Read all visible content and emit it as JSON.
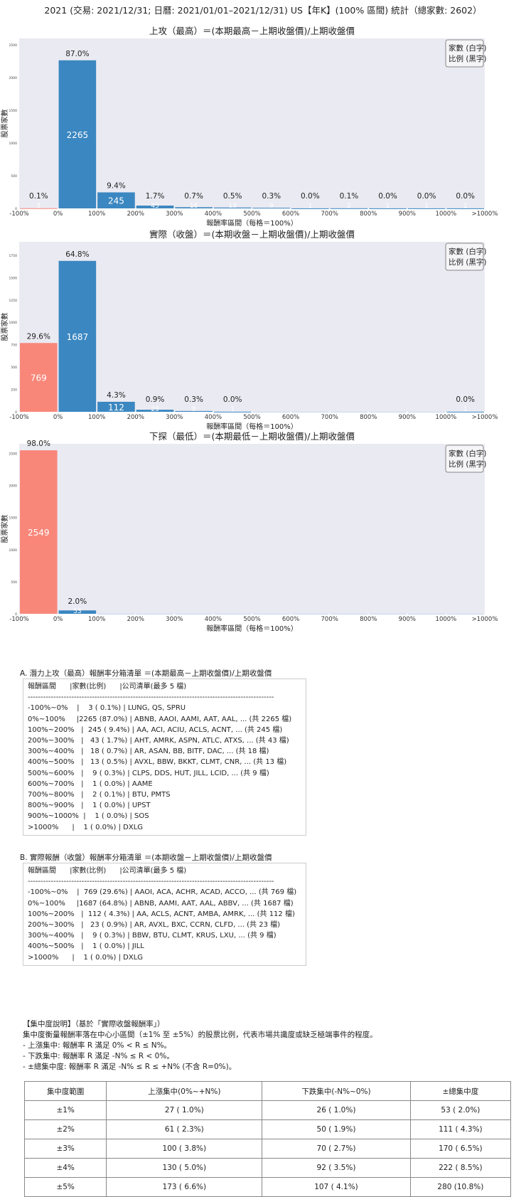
{
  "title": "2021 (交易: 2021/12/31; 日曆: 2021/01/01–2021/12/31) US【年K】(100% 區間) 統計（總家數: 2602）",
  "colors": {
    "negative": "#f8877a",
    "positive": "#3b87c1",
    "plot_bg": "#eaeaf2"
  },
  "chart_data": [
    {
      "type": "bar",
      "title": "上攻（最高）＝(本期最高－上期收盤價)/上期收盤價",
      "xlabel": "報酬率區間（每格＝100%）",
      "ylabel": "股票家數",
      "legend": "家數 (白字)\n比例 (黑字)",
      "legend_lines": [
        "家數 (白字)",
        "比例 (黑字)"
      ],
      "legend_position": "top-right",
      "x_ticks": [
        "-100%",
        "0%",
        "100%",
        "200%",
        "300%",
        "400%",
        "500%",
        "600%",
        "700%",
        "800%",
        "900%",
        "1000%",
        ">1000%"
      ],
      "categories": [
        "-100%~0%",
        "0%~100%",
        "100%~200%",
        "200%~300%",
        "300%~400%",
        "400%~500%",
        "500%~600%",
        "600%~700%",
        "700%~800%",
        "800%~900%",
        "900%~1000%",
        ">1000%"
      ],
      "values": [
        3,
        2265,
        245,
        43,
        18,
        13,
        9,
        1,
        2,
        1,
        1,
        1
      ],
      "pct": [
        "0.1%",
        "87.0%",
        "9.4%",
        "1.7%",
        "0.7%",
        "0.5%",
        "0.3%",
        "0.0%",
        "0.1%",
        "0.0%",
        "0.0%",
        "0.0%"
      ],
      "y_ticks": [
        0,
        500,
        1000,
        1500,
        2000,
        2500
      ],
      "ylim": [
        0,
        2600
      ]
    },
    {
      "type": "bar",
      "title": "實際（收盤）＝(本期收盤－上期收盤價)/上期收盤價",
      "xlabel": "報酬率區間（每格＝100%）",
      "ylabel": "股票家數",
      "legend_lines": [
        "家數 (白字)",
        "比例 (黑字)"
      ],
      "legend_position": "top-right",
      "x_ticks": [
        "-100%",
        "0%",
        "100%",
        "200%",
        "300%",
        "400%",
        "500%",
        "600%",
        "700%",
        "800%",
        "900%",
        "1000%",
        ">1000%"
      ],
      "categories": [
        "-100%~0%",
        "0%~100%",
        "100%~200%",
        "200%~300%",
        "300%~400%",
        "400%~500%",
        "500%~600%",
        "600%~700%",
        "700%~800%",
        "800%~900%",
        "900%~1000%",
        ">1000%"
      ],
      "values": [
        769,
        1687,
        112,
        23,
        9,
        1,
        0,
        0,
        0,
        0,
        0,
        1
      ],
      "pct": [
        "29.6%",
        "64.8%",
        "4.3%",
        "0.9%",
        "0.3%",
        "0.0%",
        "",
        "",
        "",
        "",
        "",
        "0.0%"
      ],
      "y_ticks": [
        0,
        250,
        500,
        750,
        1000,
        1250,
        1500,
        1750
      ],
      "ylim": [
        0,
        1900
      ]
    },
    {
      "type": "bar",
      "title": "下探（最低）＝(本期最低－上期收盤價)/上期收盤價",
      "xlabel": "報酬率區間（每格＝100%）",
      "ylabel": "股票家數",
      "legend_lines": [
        "家數 (白字)",
        "比例 (黑字)"
      ],
      "legend_position": "top-right",
      "x_ticks": [
        "-100%",
        "0%",
        "100%",
        "200%",
        "300%",
        "400%",
        "500%",
        "600%",
        "700%",
        "800%",
        "900%",
        "1000%",
        ">1000%"
      ],
      "categories": [
        "-100%~0%",
        "0%~100%",
        "100%~200%",
        "200%~300%",
        "300%~400%",
        "400%~500%",
        "500%~600%",
        "600%~700%",
        "700%~800%",
        "800%~900%",
        "900%~1000%",
        ">1000%"
      ],
      "values": [
        2549,
        53,
        0,
        0,
        0,
        0,
        0,
        0,
        0,
        0,
        0,
        0
      ],
      "pct": [
        "98.0%",
        "2.0%",
        "",
        "",
        "",
        "",
        "",
        "",
        "",
        "",
        "",
        ""
      ],
      "y_ticks": [
        0,
        500,
        1000,
        1500,
        2000,
        2500
      ],
      "ylim": [
        0,
        2650
      ]
    }
  ],
  "list_a": {
    "caption": "A. 潛力上攻（最高）報酬率分箱清單 ＝(本期最高－上期收盤價)/上期收盤價",
    "header": "報酬區間      |家數(比例)      |公司清單(最多 5 檔)",
    "divider": "------------------------------------------------------------------------------------------------",
    "rows": [
      "-100%~0%    |    3 ( 0.1%) | LUNG, QS, SPRU",
      "0%~100%     |2265 (87.0%) | ABNB, AAOI, AAMI, AAT, AAL, ... (共 2265 檔)",
      "100%~200%   |  245 ( 9.4%) | AA, ACI, ACIU, ACLS, ACNT, ... (共 245 檔)",
      "200%~300%   |   43 ( 1.7%) | AHT, AMRK, ASPN, ATLC, ATXS, ... (共 43 檔)",
      "300%~400%   |   18 ( 0.7%) | AR, ASAN, BB, BITF, DAC, ... (共 18 檔)",
      "400%~500%   |   13 ( 0.5%) | AVXL, BBW, BKKT, CLMT, CNR, ... (共 13 檔)",
      "500%~600%   |    9 ( 0.3%) | CLPS, DDS, HUT, JILL, LCID, ... (共 9 檔)",
      "600%~700%   |    1 ( 0.0%) | AAME",
      "700%~800%   |    2 ( 0.1%) | BTU, PMTS",
      "800%~900%   |    1 ( 0.0%) | UPST",
      "900%~1000%  |    1 ( 0.0%) | SOS",
      ">1000%      |    1 ( 0.0%) | DXLG"
    ]
  },
  "list_b": {
    "caption": "B. 實際報酬（收盤）報酬率分箱清單 ＝(本期收盤－上期收盤價)/上期收盤價",
    "header": "報酬區間      |家數(比例)      |公司清單(最多 5 檔)",
    "divider": "------------------------------------------------------------------------------------------------",
    "rows": [
      "-100%~0%    |  769 (29.6%) | AAOI, ACA, ACHR, ACAD, ACCO, ... (共 769 檔)",
      "0%~100%     |1687 (64.8%) | ABNB, AAMI, AAT, AAL, ABBV, ... (共 1687 檔)",
      "100%~200%   |  112 ( 4.3%) | AA, ACLS, ACNT, AMBA, AMRK, ... (共 112 檔)",
      "200%~300%   |   23 ( 0.9%) | AR, AVXL, BXC, CCRN, CLFD, ... (共 23 檔)",
      "300%~400%   |    9 ( 0.3%) | BBW, BTU, CLMT, KRUS, LXU, ... (共 9 檔)",
      "400%~500%   |    1 ( 0.0%) | JILL",
      ">1000%      |    1 ( 0.0%) | DXLG"
    ]
  },
  "concentration": {
    "lines": [
      "【集中度說明】（基於「實際收盤報酬率」）",
      "集中度衡量報酬率落在中心小區間（±1% 至 ±5%）的股票比例，代表市場共識度或缺乏極端事件的程度。",
      " - 上漲集中: 報酬率 R 滿足 0% < R ≤ N%。",
      " - 下跌集中: 報酬率 R 滿足 -N% ≤ R < 0%。",
      " - ±總集中度: 報酬率 R 滿足 -N% ≤ R ≤ +N% (不含 R=0%)。"
    ],
    "headers": [
      "集中度範圍",
      "上漲集中(0%~+N%)",
      "下跌集中(-N%~0%)",
      "±總集中度"
    ],
    "rows": [
      [
        "±1%",
        "27 ( 1.0%)",
        "26 ( 1.0%)",
        "53 ( 2.0%)"
      ],
      [
        "±2%",
        "61 ( 2.3%)",
        "50 ( 1.9%)",
        "111 ( 4.3%)"
      ],
      [
        "±3%",
        "100 ( 3.8%)",
        "70 ( 2.7%)",
        "170 ( 6.5%)"
      ],
      [
        "±4%",
        "130 ( 5.0%)",
        "92 ( 3.5%)",
        "222 ( 8.5%)"
      ],
      [
        "±5%",
        "173 ( 6.6%)",
        "107 ( 4.1%)",
        "280 (10.8%)"
      ]
    ]
  }
}
